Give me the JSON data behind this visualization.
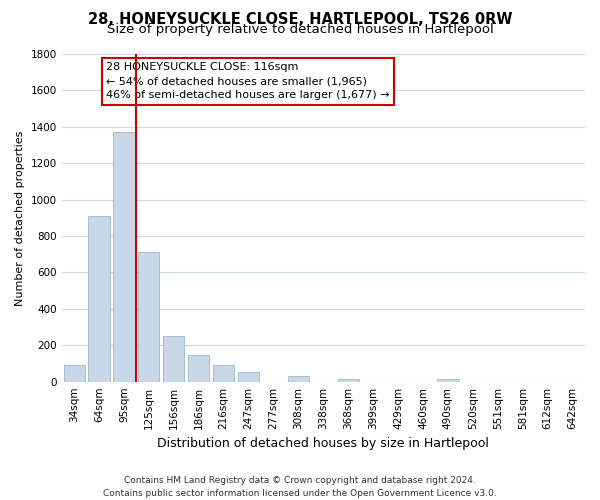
{
  "title": "28, HONEYSUCKLE CLOSE, HARTLEPOOL, TS26 0RW",
  "subtitle": "Size of property relative to detached houses in Hartlepool",
  "xlabel": "Distribution of detached houses by size in Hartlepool",
  "ylabel": "Number of detached properties",
  "bar_color": "#c8d8e8",
  "bar_edge_color": "#a0b8cc",
  "categories": [
    "34sqm",
    "64sqm",
    "95sqm",
    "125sqm",
    "156sqm",
    "186sqm",
    "216sqm",
    "247sqm",
    "277sqm",
    "308sqm",
    "338sqm",
    "368sqm",
    "399sqm",
    "429sqm",
    "460sqm",
    "490sqm",
    "520sqm",
    "551sqm",
    "581sqm",
    "612sqm",
    "642sqm"
  ],
  "values": [
    90,
    910,
    1370,
    710,
    250,
    145,
    90,
    55,
    0,
    30,
    0,
    15,
    0,
    0,
    0,
    15,
    0,
    0,
    0,
    0,
    0
  ],
  "ylim": [
    0,
    1800
  ],
  "yticks": [
    0,
    200,
    400,
    600,
    800,
    1000,
    1200,
    1400,
    1600,
    1800
  ],
  "vline_color": "#cc0000",
  "annotation_title": "28 HONEYSUCKLE CLOSE: 116sqm",
  "annotation_line1": "← 54% of detached houses are smaller (1,965)",
  "annotation_line2": "46% of semi-detached houses are larger (1,677) →",
  "footer1": "Contains HM Land Registry data © Crown copyright and database right 2024.",
  "footer2": "Contains public sector information licensed under the Open Government Licence v3.0.",
  "background_color": "#ffffff",
  "grid_color": "#c8d8e8",
  "title_fontsize": 10.5,
  "subtitle_fontsize": 9.5,
  "ylabel_fontsize": 8,
  "xlabel_fontsize": 9,
  "tick_fontsize": 7.5,
  "annot_fontsize": 8,
  "footer_fontsize": 6.5
}
